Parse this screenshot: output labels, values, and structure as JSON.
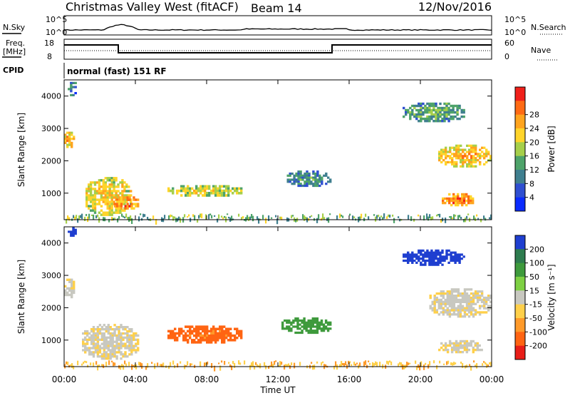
{
  "header": {
    "station": "Christmas Valley West (fitACF)",
    "beam": "Beam 14",
    "date": "12/Nov/2016"
  },
  "noise_panel": {
    "left_label": "N.Sky",
    "right_label": "N.Search",
    "left_ticks": [
      "10^5",
      "10^0"
    ],
    "right_ticks": [
      "10^5",
      "10^0"
    ]
  },
  "freq_panel": {
    "left_label_line1": "Freq.",
    "left_label_line2": "[MHz]",
    "right_label": "Nave",
    "left_ticks": [
      "18",
      "8"
    ],
    "right_ticks": [
      "60",
      "0"
    ]
  },
  "cpid": {
    "label": "CPID",
    "mode": "normal (fast) 151 RF"
  },
  "x_axis": {
    "label": "Time UT",
    "ticks": [
      "00:00",
      "04:00",
      "08:00",
      "12:00",
      "16:00",
      "20:00",
      "00:00"
    ]
  },
  "range_axis": {
    "label": "Slant Range [km]",
    "ticks": [
      "1000",
      "2000",
      "3000",
      "4000"
    ]
  },
  "colorbars": {
    "power": {
      "label": "Power [dB]",
      "ticks": [
        "4",
        "8",
        "12",
        "16",
        "20",
        "24",
        "28"
      ],
      "colors": [
        "#0a2bff",
        "#2f4fd1",
        "#3f7f8f",
        "#4ea36a",
        "#a6cf4a",
        "#ffd42a",
        "#ffa41e",
        "#ff6a14",
        "#f0201a"
      ]
    },
    "velocity": {
      "label": "Velocity [m s⁻¹]",
      "ticks": [
        "200",
        "100",
        "50",
        "15",
        "-15",
        "-50",
        "-100",
        "-200"
      ],
      "colors": [
        "#1f3fd0",
        "#2e7c4f",
        "#3e9a3c",
        "#7ed043",
        "#c8c8c0",
        "#ffd04a",
        "#ff9a2a",
        "#ff6412",
        "#e81e18"
      ]
    }
  },
  "chart_data": {
    "type": "heatmap",
    "x_range_hours": [
      0,
      24
    ],
    "y_range_km": [
      180,
      4500
    ],
    "power_regions": [
      {
        "t0": 0.0,
        "t1": 0.6,
        "r0": 2400,
        "r1": 2900,
        "value_db": 24
      },
      {
        "t0": 0.2,
        "t1": 0.7,
        "r0": 4000,
        "r1": 4500,
        "value_db": 10
      },
      {
        "t0": 1.2,
        "t1": 3.8,
        "r0": 300,
        "r1": 1500,
        "value_db": 22
      },
      {
        "t0": 2.8,
        "t1": 4.2,
        "r0": 500,
        "r1": 900,
        "value_db": 28
      },
      {
        "t0": 5.8,
        "t1": 10.0,
        "r0": 900,
        "r1": 1250,
        "value_db": 20
      },
      {
        "t0": 12.5,
        "t1": 15.0,
        "r0": 1200,
        "r1": 1700,
        "value_db": 12
      },
      {
        "t0": 19.0,
        "t1": 22.5,
        "r0": 3200,
        "r1": 3800,
        "value_db": 14
      },
      {
        "t0": 21.0,
        "t1": 24.0,
        "r0": 1800,
        "r1": 2500,
        "value_db": 24
      },
      {
        "t0": 21.2,
        "t1": 23.0,
        "r0": 600,
        "r1": 1000,
        "value_db": 28
      }
    ],
    "velocity_regions": [
      {
        "t0": 0.0,
        "t1": 0.6,
        "r0": 2300,
        "r1": 2900,
        "value_ms": 0
      },
      {
        "t0": 0.2,
        "t1": 0.7,
        "r0": 4200,
        "r1": 4500,
        "value_ms": 200
      },
      {
        "t0": 1.0,
        "t1": 4.2,
        "r0": 400,
        "r1": 1500,
        "value_ms": 0
      },
      {
        "t0": 5.8,
        "t1": 10.0,
        "r0": 900,
        "r1": 1450,
        "value_ms": -80
      },
      {
        "t0": 12.2,
        "t1": 15.0,
        "r0": 1200,
        "r1": 1700,
        "value_ms": 60
      },
      {
        "t0": 19.0,
        "t1": 22.5,
        "r0": 3300,
        "r1": 3800,
        "value_ms": 180
      },
      {
        "t0": 20.5,
        "t1": 24.0,
        "r0": 1700,
        "r1": 2600,
        "value_ms": 0
      },
      {
        "t0": 21.0,
        "t1": 23.5,
        "r0": 600,
        "r1": 1000,
        "value_ms": 0
      }
    ]
  }
}
